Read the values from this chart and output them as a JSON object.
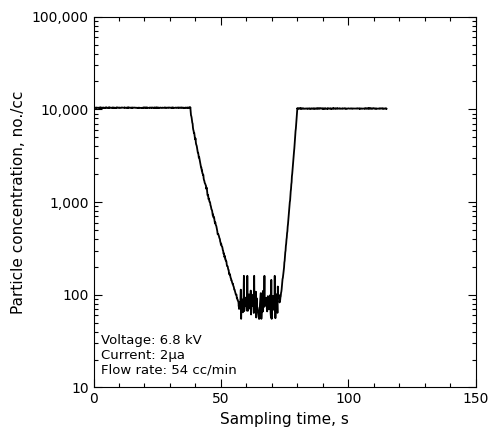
{
  "title": "",
  "xlabel": "Sampling time, s",
  "ylabel": "Particle concentration, no./cc",
  "xlim": [
    0,
    150
  ],
  "ylim": [
    10,
    100000
  ],
  "annotation": "Voltage: 6.8 kV\nCurrent: 2μa\nFlow rate: 54 cc/min",
  "line_color": "#000000",
  "line_width": 1.3,
  "background_color": "#ffffff",
  "xticks": [
    0,
    50,
    100,
    150
  ],
  "yticks": [
    10,
    100,
    1000,
    10000,
    100000
  ],
  "ytick_labels": [
    "10",
    "100",
    "1,000",
    "10,000",
    "100,000"
  ]
}
